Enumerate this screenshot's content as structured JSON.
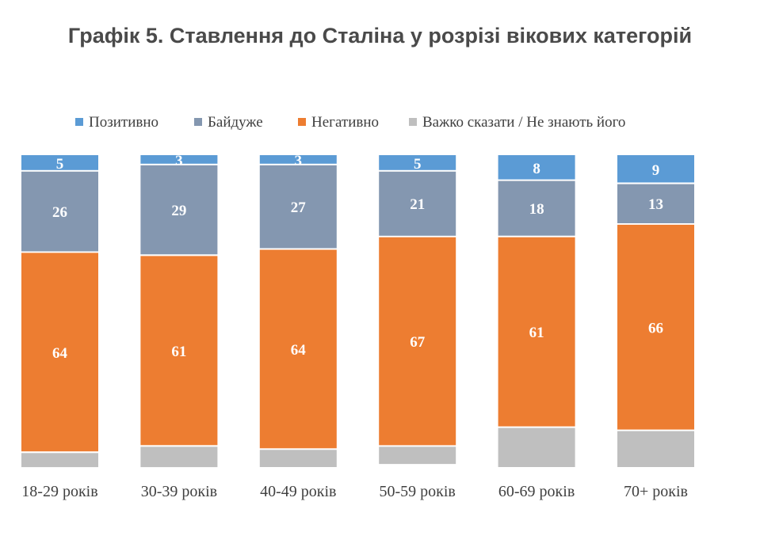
{
  "chart_data": {
    "type": "bar",
    "stacked": true,
    "title": "Графік 5. Ставлення до Сталіна у розрізі вікових категорій",
    "categories": [
      "18-29 років",
      "30-39 років",
      "40-49 років",
      "50-59 років",
      "60-69 років",
      "70+ років"
    ],
    "series": [
      {
        "name": "Позитивно",
        "color": "#5b9bd5",
        "values": [
          5,
          3,
          3,
          5,
          8,
          9
        ]
      },
      {
        "name": "Байдуже",
        "color": "#8497b0",
        "values": [
          26,
          29,
          27,
          21,
          18,
          13
        ]
      },
      {
        "name": "Негативно",
        "color": "#ed7d31",
        "values": [
          64,
          61,
          64,
          67,
          61,
          66
        ]
      },
      {
        "name": "Важко сказати / Не знають його",
        "color": "#bfbfbf",
        "values": [
          5,
          7,
          6,
          6,
          13,
          12
        ]
      }
    ],
    "value_labels": [
      [
        "5",
        "3",
        "3",
        "5",
        "8",
        "9"
      ],
      [
        "26",
        "29",
        "27",
        "21",
        "18",
        "13"
      ],
      [
        "64",
        "61",
        "64",
        "67",
        "61",
        "66"
      ],
      [
        "",
        "",
        "",
        "",
        "",
        ""
      ]
    ],
    "ylim": [
      0,
      100
    ],
    "legend_position": "top",
    "grid": false
  }
}
